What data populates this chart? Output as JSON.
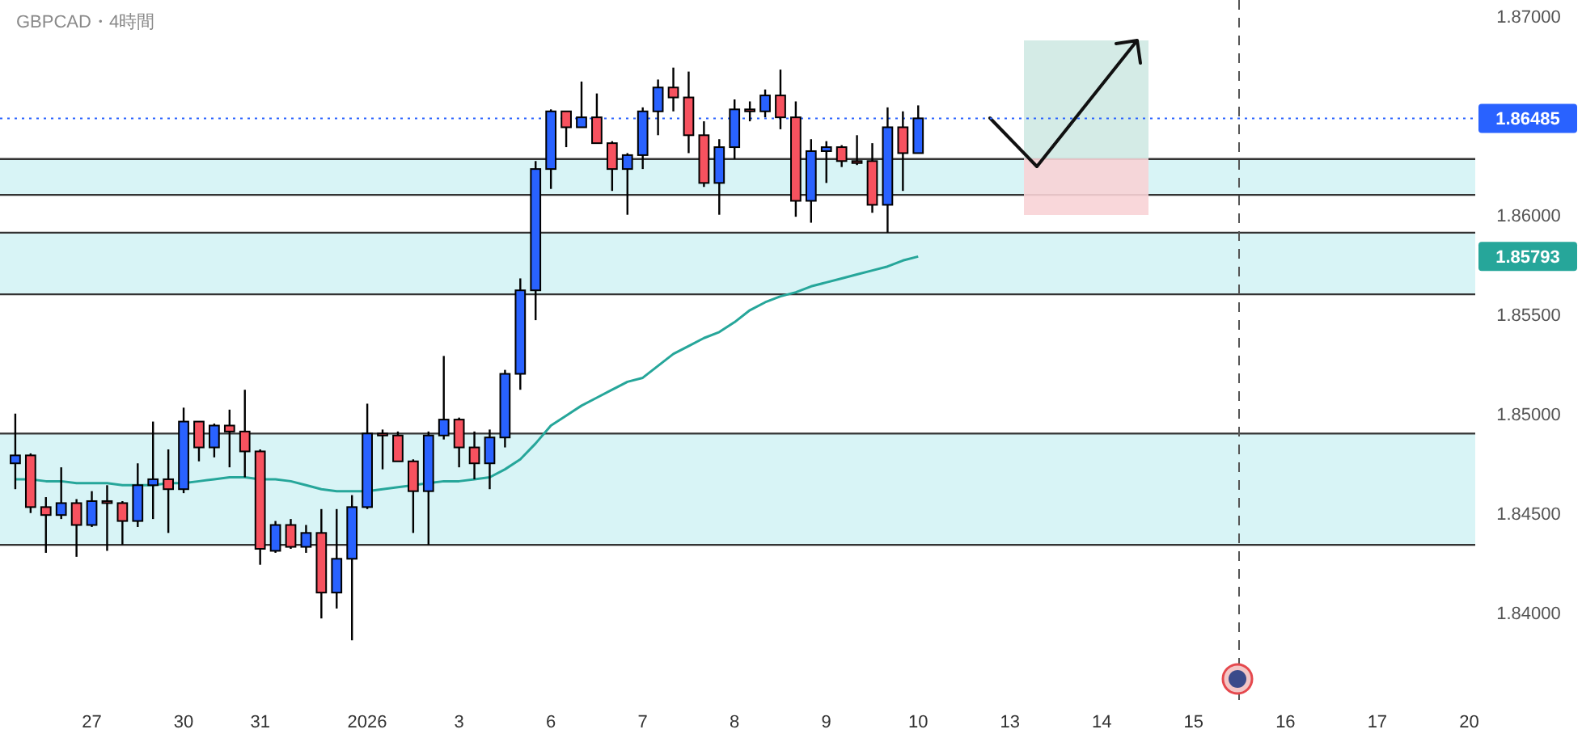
{
  "chart_data": {
    "type": "candlestick",
    "title": "GBPCAD・4時間",
    "categories": [
      null,
      null,
      null,
      null,
      null,
      "27",
      null,
      null,
      null,
      null,
      null,
      "30",
      null,
      null,
      null,
      null,
      "31",
      null,
      null,
      null,
      null,
      null,
      null,
      "2026",
      null,
      null,
      null,
      null,
      null,
      "3",
      null,
      null,
      null,
      null,
      null,
      "6",
      null,
      null,
      null,
      null,
      null,
      "7",
      null,
      null,
      null,
      null,
      null,
      "8",
      null,
      null,
      null,
      null,
      null,
      "9",
      null,
      null,
      null,
      null,
      null,
      "10",
      null,
      null,
      null,
      null,
      null,
      "13",
      null,
      null,
      null,
      null,
      null,
      "14",
      null,
      null,
      null,
      null,
      null,
      "15",
      null,
      null,
      null,
      null,
      null,
      "16",
      null,
      null,
      null,
      null,
      null,
      "17",
      null,
      null,
      null,
      null,
      null,
      "20"
    ],
    "ohlc": [
      [
        1.8475,
        1.85,
        1.8462,
        1.8479
      ],
      [
        1.8479,
        1.848,
        1.845,
        1.8453
      ],
      [
        1.8453,
        1.8458,
        1.843,
        1.8449
      ],
      [
        1.8449,
        1.8473,
        1.8447,
        1.8455
      ],
      [
        1.8455,
        1.8457,
        1.8428,
        1.8444
      ],
      [
        1.8444,
        1.8461,
        1.8443,
        1.8456
      ],
      [
        1.8456,
        1.8464,
        1.8431,
        1.8455
      ],
      [
        1.8455,
        1.8456,
        1.8434,
        1.8446
      ],
      [
        1.8446,
        1.8475,
        1.8443,
        1.8464
      ],
      [
        1.8464,
        1.8496,
        1.8447,
        1.8467
      ],
      [
        1.8467,
        1.8482,
        1.844,
        1.8462
      ],
      [
        1.8462,
        1.8503,
        1.846,
        1.8496
      ],
      [
        1.8496,
        1.8496,
        1.8476,
        1.8483
      ],
      [
        1.8483,
        1.8495,
        1.8478,
        1.8494
      ],
      [
        1.8494,
        1.8502,
        1.8473,
        1.8491
      ],
      [
        1.8491,
        1.8512,
        1.8468,
        1.8481
      ],
      [
        1.8481,
        1.8482,
        1.8424,
        1.8432
      ],
      [
        1.8431,
        1.8446,
        1.843,
        1.8444
      ],
      [
        1.8444,
        1.8447,
        1.8432,
        1.8433
      ],
      [
        1.8433,
        1.8444,
        1.843,
        1.844
      ],
      [
        1.844,
        1.8452,
        1.8397,
        1.841
      ],
      [
        1.841,
        1.8452,
        1.8402,
        1.8427
      ],
      [
        1.8427,
        1.8459,
        1.8386,
        1.8453
      ],
      [
        1.8453,
        1.8505,
        1.8452,
        1.849
      ],
      [
        1.849,
        1.8492,
        1.8472,
        1.8489
      ],
      [
        1.8489,
        1.8491,
        1.8476,
        1.8476
      ],
      [
        1.8476,
        1.8477,
        1.844,
        1.8461
      ],
      [
        1.8461,
        1.8491,
        1.8434,
        1.8489
      ],
      [
        1.8489,
        1.8529,
        1.8487,
        1.8497
      ],
      [
        1.8497,
        1.8498,
        1.8473,
        1.8483
      ],
      [
        1.8483,
        1.8491,
        1.8467,
        1.8475
      ],
      [
        1.8475,
        1.8492,
        1.8462,
        1.8488
      ],
      [
        1.8488,
        1.8522,
        1.8483,
        1.852
      ],
      [
        1.852,
        1.8568,
        1.8512,
        1.8562
      ],
      [
        1.8562,
        1.8627,
        1.8547,
        1.8623
      ],
      [
        1.8623,
        1.8653,
        1.8613,
        1.8652
      ],
      [
        1.8652,
        1.8652,
        1.8634,
        1.8644
      ],
      [
        1.8644,
        1.8667,
        1.8644,
        1.8649
      ],
      [
        1.8649,
        1.8661,
        1.8636,
        1.8636
      ],
      [
        1.8636,
        1.8637,
        1.8612,
        1.8623
      ],
      [
        1.8623,
        1.8631,
        1.86,
        1.863
      ],
      [
        1.863,
        1.8654,
        1.8623,
        1.8652
      ],
      [
        1.8652,
        1.8668,
        1.864,
        1.8664
      ],
      [
        1.8664,
        1.8674,
        1.8652,
        1.8659
      ],
      [
        1.8659,
        1.8672,
        1.8631,
        1.864
      ],
      [
        1.864,
        1.8647,
        1.8614,
        1.8616
      ],
      [
        1.8616,
        1.8638,
        1.86,
        1.8634
      ],
      [
        1.8634,
        1.8658,
        1.8628,
        1.8653
      ],
      [
        1.8653,
        1.8657,
        1.8647,
        1.8652
      ],
      [
        1.8652,
        1.8663,
        1.8649,
        1.866
      ],
      [
        1.866,
        1.8673,
        1.8643,
        1.8649
      ],
      [
        1.8649,
        1.8657,
        1.8599,
        1.8607
      ],
      [
        1.8607,
        1.8638,
        1.8596,
        1.8632
      ],
      [
        1.8632,
        1.8637,
        1.8616,
        1.8634
      ],
      [
        1.8634,
        1.8635,
        1.8624,
        1.8627
      ],
      [
        1.8627,
        1.864,
        1.8625,
        1.8626
      ],
      [
        1.8627,
        1.8636,
        1.8601,
        1.8605
      ],
      [
        1.8605,
        1.8654,
        1.8591,
        1.8644
      ],
      [
        1.8644,
        1.8652,
        1.8612,
        1.8631
      ],
      [
        1.8631,
        1.8655,
        1.8631,
        1.86485
      ],
      null,
      null,
      null,
      null,
      null,
      null,
      null,
      null,
      null,
      null,
      null,
      null,
      null,
      null,
      null,
      null,
      null,
      null,
      null,
      null,
      null,
      null,
      null,
      null,
      null,
      null,
      null,
      null,
      null,
      null,
      null,
      null,
      null,
      null,
      null,
      null
    ],
    "colors": [
      "#2962ff",
      "#f7525f",
      "#f7525f",
      "#2962ff",
      "#f7525f",
      "#2962ff",
      "#f7525f",
      "#f7525f",
      "#2962ff",
      "#2962ff",
      "#f7525f",
      "#2962ff",
      "#f7525f",
      "#2962ff",
      "#f7525f",
      "#f7525f",
      "#f7525f",
      "#2962ff",
      "#f7525f",
      "#2962ff",
      "#f7525f",
      "#2962ff",
      "#2962ff",
      "#2962ff",
      "#f7525f",
      "#f7525f",
      "#f7525f",
      "#2962ff",
      "#2962ff",
      "#f7525f",
      "#f7525f",
      "#2962ff",
      "#2962ff",
      "#2962ff",
      "#2962ff",
      "#2962ff",
      "#f7525f",
      "#2962ff",
      "#f7525f",
      "#f7525f",
      "#2962ff",
      "#2962ff",
      "#2962ff",
      "#f7525f",
      "#f7525f",
      "#f7525f",
      "#2962ff",
      "#2962ff",
      "#f7525f",
      "#2962ff",
      "#f7525f",
      "#f7525f",
      "#2962ff",
      "#2962ff",
      "#f7525f",
      "#f7525f",
      "#f7525f",
      "#2962ff",
      "#f7525f",
      "#2962ff",
      null,
      null,
      null,
      null,
      null,
      null,
      null,
      null,
      null,
      null,
      null,
      null,
      null,
      null,
      null,
      null,
      null,
      null,
      null,
      null,
      null,
      null,
      null,
      null,
      null,
      null,
      null,
      null,
      null,
      null,
      null,
      null,
      null,
      null,
      null,
      null
    ],
    "series": [
      {
        "type": "line",
        "color": "#26a69a",
        "values": [
          1.8467,
          1.8467,
          1.8466,
          1.8466,
          1.8465,
          1.8465,
          1.8465,
          1.8464,
          1.8464,
          1.8464,
          1.8465,
          1.8465,
          1.8466,
          1.8467,
          1.8468,
          1.8468,
          1.8467,
          1.8467,
          1.8466,
          1.8464,
          1.8462,
          1.8461,
          1.8461,
          1.8461,
          1.8462,
          1.8463,
          1.8464,
          1.8465,
          1.8466,
          1.8466,
          1.8467,
          1.8468,
          1.8472,
          1.8477,
          1.8485,
          1.8494,
          1.8499,
          1.8504,
          1.8508,
          1.8512,
          1.8516,
          1.8518,
          1.8524,
          1.853,
          1.8534,
          1.8538,
          1.8541,
          1.8546,
          1.8552,
          1.8556,
          1.8559,
          1.8561,
          1.8564,
          1.8566,
          1.8568,
          1.857,
          1.8572,
          1.8574,
          1.8577,
          1.8579,
          null,
          null,
          null,
          null,
          null,
          null,
          null,
          null,
          null,
          null,
          null,
          null,
          null,
          null,
          null,
          null,
          null,
          null,
          null,
          null,
          null,
          null,
          null,
          null,
          null,
          null,
          null,
          null,
          null,
          null,
          null,
          null,
          null,
          null,
          null,
          null
        ]
      }
    ],
    "ylim": [
      1.8356,
      1.8708
    ],
    "yticks": [
      {
        "value": 1.84,
        "label": "1.84000"
      },
      {
        "value": 1.845,
        "label": "1.84500"
      },
      {
        "value": 1.85,
        "label": "1.85000"
      },
      {
        "value": 1.855,
        "label": "1.85500"
      },
      {
        "value": 1.86,
        "label": "1.86000"
      },
      {
        "value": 1.87,
        "label": "1.87000"
      }
    ],
    "bands": [
      {
        "axis": "y",
        "from": 1.861,
        "to": 1.8628,
        "color": "#d8f4f6"
      },
      {
        "axis": "y",
        "from": 1.856,
        "to": 1.8591,
        "color": "#d8f4f6"
      },
      {
        "axis": "y",
        "from": 1.8434,
        "to": 1.849,
        "color": "#d8f4f6"
      }
    ],
    "ref_lines": [
      {
        "axis": "y",
        "value": 1.86485,
        "label": "1.86485",
        "color": "#2962ff",
        "line_style": "dotted"
      }
    ],
    "annotations": [
      "1.85793"
    ]
  }
}
